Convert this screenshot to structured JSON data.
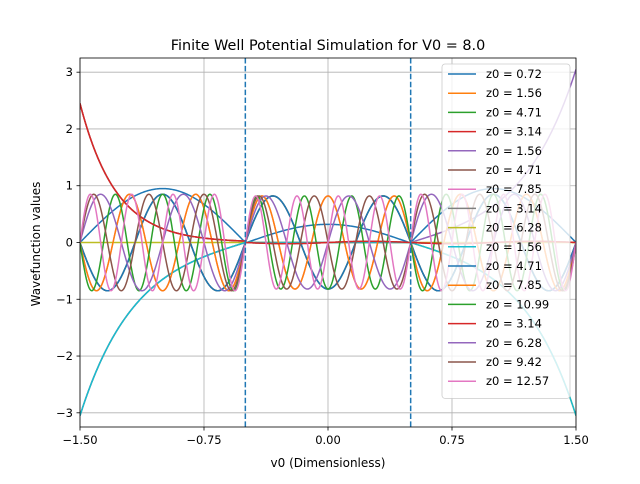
{
  "chart_data": {
    "type": "line",
    "title": "Finite Well Potential Simulation for V0 = 8.0",
    "xlabel": "v0 (Dimensionless)",
    "ylabel": "Wavefunction values",
    "xlim": [
      -1.5,
      1.5
    ],
    "ylim": [
      -3.25,
      3.25
    ],
    "xticks": [
      -1.5,
      -0.75,
      0.0,
      0.75,
      1.5
    ],
    "xtick_labels": [
      "−1.50",
      "−0.75",
      "0.00",
      "0.75",
      "1.50"
    ],
    "yticks": [
      -3,
      -2,
      -1,
      0,
      1,
      2,
      3
    ],
    "ytick_labels": [
      "−3",
      "−2",
      "−1",
      "0",
      "1",
      "2",
      "3"
    ],
    "grid": true,
    "legend": "upper-right",
    "well_boundaries": [
      -0.5,
      0.5
    ],
    "series": [
      {
        "name": "z0 = 0.72",
        "color": "#1f77b4",
        "z0": 0.72,
        "parity": "even"
      },
      {
        "name": "z0 = 1.56",
        "color": "#ff7f0e",
        "z0": 1.56,
        "parity": "odd"
      },
      {
        "name": "z0 = 4.71",
        "color": "#2ca02c",
        "z0": 4.71,
        "parity": "odd"
      },
      {
        "name": "z0 = 3.14",
        "color": "#d62728",
        "z0": 3.14,
        "parity": "decay-left"
      },
      {
        "name": "z0 = 1.56",
        "color": "#9467bd",
        "z0": 1.56,
        "parity": "odd"
      },
      {
        "name": "z0 = 4.71",
        "color": "#8c564b",
        "z0": 4.71,
        "parity": "odd"
      },
      {
        "name": "z0 = 7.85",
        "color": "#e377c2",
        "z0": 7.85,
        "parity": "odd"
      },
      {
        "name": "z0 = 3.14",
        "color": "#7f7f7f",
        "z0": 3.14,
        "parity": "decay-left"
      },
      {
        "name": "z0 = 6.28",
        "color": "#bcbd22",
        "z0": 6.28,
        "parity": "zero"
      },
      {
        "name": "z0 = 1.56",
        "color": "#17becf",
        "z0": 1.56,
        "parity": "odd"
      },
      {
        "name": "z0 = 4.71",
        "color": "#1f77b4",
        "z0": 4.71,
        "parity": "odd"
      },
      {
        "name": "z0 = 7.85",
        "color": "#ff7f0e",
        "z0": 7.85,
        "parity": "odd"
      },
      {
        "name": "z0 = 10.99",
        "color": "#2ca02c",
        "z0": 10.99,
        "parity": "odd"
      },
      {
        "name": "z0 = 3.14",
        "color": "#d62728",
        "z0": 3.14,
        "parity": "decay-left"
      },
      {
        "name": "z0 = 6.28",
        "color": "#9467bd",
        "z0": 6.28,
        "parity": "odd"
      },
      {
        "name": "z0 = 9.42",
        "color": "#8c564b",
        "z0": 9.42,
        "parity": "odd"
      },
      {
        "name": "z0 = 12.57",
        "color": "#e377c2",
        "z0": 12.57,
        "parity": "odd"
      }
    ]
  }
}
